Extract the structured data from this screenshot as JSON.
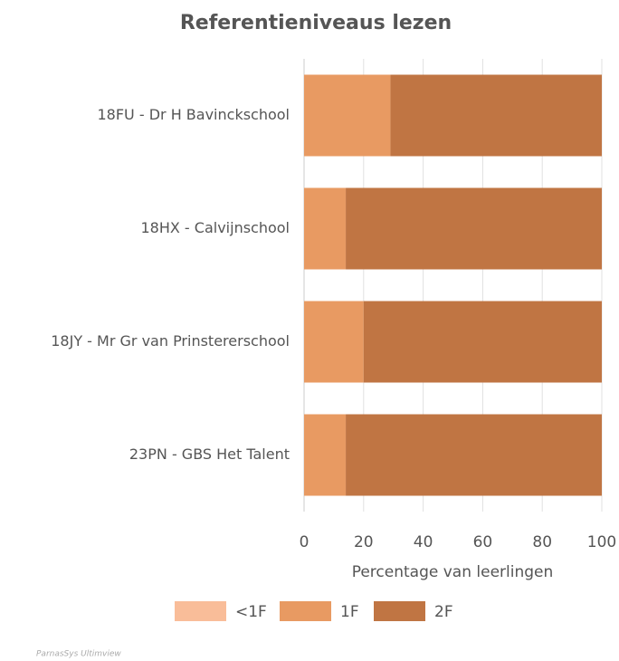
{
  "chart_data": {
    "type": "bar",
    "orientation": "horizontal",
    "stacked": true,
    "title": "Referentieniveaus lezen",
    "categories": [
      "18FU - Dr H Bavinckschool",
      "18HX - Calvijnschool",
      "18JY - Mr Gr van Prinstererschool",
      "23PN - GBS Het Talent"
    ],
    "series": [
      {
        "name": "<1F",
        "color": "#f9bd99",
        "values": [
          0,
          0,
          0,
          0
        ]
      },
      {
        "name": "1F",
        "color": "#e89a62",
        "values": [
          29,
          14,
          20,
          14
        ]
      },
      {
        "name": "2F",
        "color": "#c07543",
        "values": [
          71,
          86,
          80,
          86
        ]
      }
    ],
    "xlim": [
      0,
      100
    ],
    "xticks": [
      0,
      20,
      40,
      60,
      80,
      100
    ],
    "xlabel": "Percentage van leerlingen",
    "grid": true,
    "legend": "bottom",
    "credit": "ParnasSys Ultimview"
  }
}
